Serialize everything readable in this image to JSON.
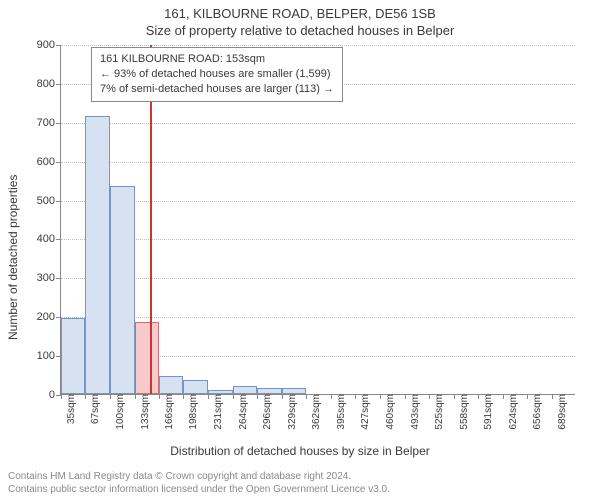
{
  "title": "161, KILBOURNE ROAD, BELPER, DE56 1SB",
  "subtitle": "Size of property relative to detached houses in Belper",
  "ylabel": "Number of detached properties",
  "xlabel": "Distribution of detached houses by size in Belper",
  "chart": {
    "type": "bar",
    "background_color": "#ffffff",
    "grid_color": "#bfbfbf",
    "axis_color": "#888888",
    "ylim": [
      0,
      900
    ],
    "ytick_step": 100,
    "bar_fill": "#d6e1f1",
    "bar_stroke": "#7a94c2",
    "highlight_fill": "#f6c9ca",
    "highlight_stroke": "#cc6f74",
    "marker_color": "#cc3333",
    "bars": [
      {
        "label": "35sqm",
        "value": 195,
        "from": 35,
        "to": 67
      },
      {
        "label": "67sqm",
        "value": 715,
        "from": 67,
        "to": 100
      },
      {
        "label": "100sqm",
        "value": 535,
        "from": 100,
        "to": 133
      },
      {
        "label": "133sqm",
        "value": 185,
        "from": 133,
        "to": 166,
        "isTarget": true
      },
      {
        "label": "166sqm",
        "value": 47,
        "from": 166,
        "to": 198
      },
      {
        "label": "198sqm",
        "value": 35,
        "from": 198,
        "to": 231
      },
      {
        "label": "231sqm",
        "value": 10,
        "from": 231,
        "to": 264
      },
      {
        "label": "264sqm",
        "value": 20,
        "from": 264,
        "to": 296
      },
      {
        "label": "296sqm",
        "value": 15,
        "from": 296,
        "to": 329
      },
      {
        "label": "329sqm",
        "value": 15,
        "from": 329,
        "to": 362
      },
      {
        "label": "362sqm",
        "value": 0,
        "from": 362,
        "to": 395
      },
      {
        "label": "395sqm",
        "value": 0,
        "from": 395,
        "to": 427
      },
      {
        "label": "427sqm",
        "value": 0,
        "from": 427,
        "to": 460
      },
      {
        "label": "460sqm",
        "value": 0,
        "from": 460,
        "to": 493
      },
      {
        "label": "493sqm",
        "value": 0,
        "from": 493,
        "to": 525
      },
      {
        "label": "525sqm",
        "value": 0,
        "from": 525,
        "to": 558
      },
      {
        "label": "558sqm",
        "value": 0,
        "from": 558,
        "to": 591
      },
      {
        "label": "591sqm",
        "value": 0,
        "from": 591,
        "to": 624
      },
      {
        "label": "624sqm",
        "value": 0,
        "from": 624,
        "to": 656
      },
      {
        "label": "656sqm",
        "value": 0,
        "from": 656,
        "to": 689
      },
      {
        "label": "689sqm",
        "value": 0,
        "from": 689,
        "to": 721
      }
    ],
    "x_min": 35,
    "x_max": 721,
    "marker_value": 153
  },
  "annotation": {
    "line1": "161 KILBOURNE ROAD: 153sqm",
    "line2": "← 93% of detached houses are smaller (1,599)",
    "line3": "7% of semi-detached houses are larger (113) →"
  },
  "footer": {
    "line1": "Contains HM Land Registry data © Crown copyright and database right 2024.",
    "line2": "Contains public sector information licensed under the Open Government Licence v3.0."
  }
}
